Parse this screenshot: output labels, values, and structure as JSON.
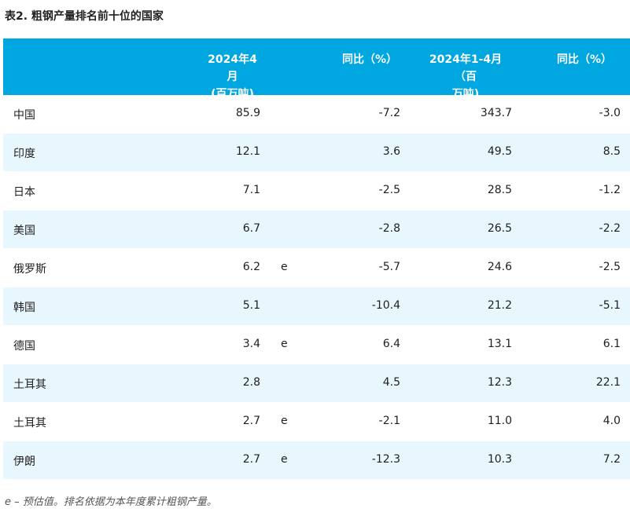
{
  "title": "表2. 粗钢产量排名前十位的国家",
  "headers": {
    "col1_line1": "2024年4月",
    "col1_line2": "(百万吨)",
    "col2": "同比（%）",
    "col3_line1": "2024年1-4月（百",
    "col3_line2": "万吨)",
    "col4": "同比（%）"
  },
  "rows": [
    {
      "name": "中国",
      "v1": "85.9",
      "flag": "",
      "p1": "-7.2",
      "v2": "343.7",
      "p2": "-3.0"
    },
    {
      "name": "印度",
      "v1": "12.1",
      "flag": "",
      "p1": "3.6",
      "v2": "49.5",
      "p2": "8.5"
    },
    {
      "name": "日本",
      "v1": "7.1",
      "flag": "",
      "p1": "-2.5",
      "v2": "28.5",
      "p2": "-1.2"
    },
    {
      "name": "美国",
      "v1": "6.7",
      "flag": "",
      "p1": "-2.8",
      "v2": "26.5",
      "p2": "-2.2"
    },
    {
      "name": "俄罗斯",
      "v1": "6.2",
      "flag": "e",
      "p1": "-5.7",
      "v2": "24.6",
      "p2": "-2.5"
    },
    {
      "name": "韩国",
      "v1": "5.1",
      "flag": "",
      "p1": "-10.4",
      "v2": "21.2",
      "p2": "-5.1"
    },
    {
      "name": "德国",
      "v1": "3.4",
      "flag": "e",
      "p1": "6.4",
      "v2": "13.1",
      "p2": "6.1"
    },
    {
      "name": "土耳其",
      "v1": "2.8",
      "flag": "",
      "p1": "4.5",
      "v2": "12.3",
      "p2": "22.1"
    },
    {
      "name": "土耳其",
      "v1": "2.7",
      "flag": "e",
      "p1": "-2.1",
      "v2": "11.0",
      "p2": "4.0"
    },
    {
      "name": "伊朗",
      "v1": "2.7",
      "flag": "e",
      "p1": "-12.3",
      "v2": "10.3",
      "p2": "7.2"
    }
  ],
  "note": "e – 预估值。排名依据为本年度累计粗钢产量。",
  "colors": {
    "header_bg": "#00a6e0",
    "row_alt_bg": "#e8f6fd",
    "header_text": "#ffffff"
  }
}
